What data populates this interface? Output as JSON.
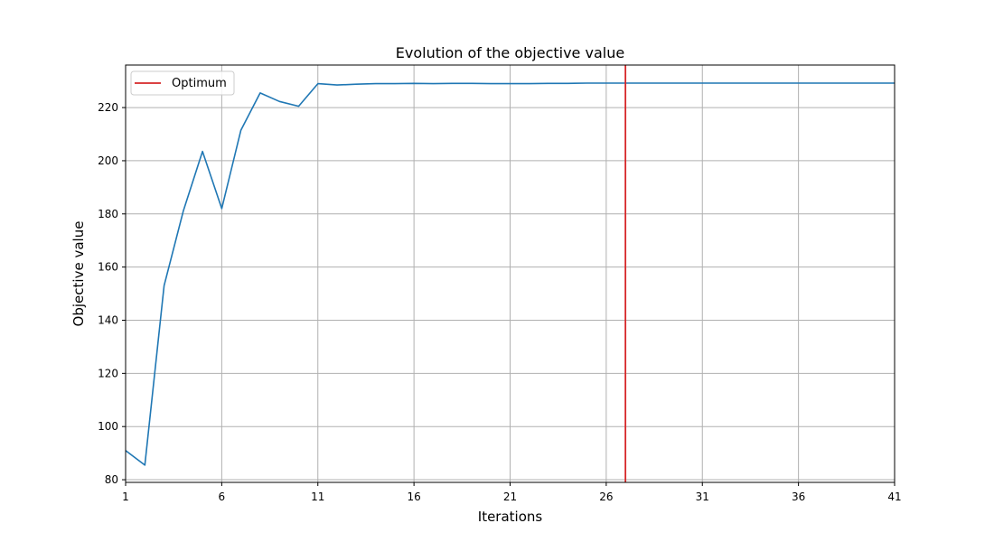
{
  "chart_data": {
    "type": "line",
    "title": "Evolution of the objective value",
    "xlabel": "Iterations",
    "ylabel": "Objective value",
    "xlim": [
      1,
      41
    ],
    "ylim": [
      79,
      236
    ],
    "xticks": [
      1,
      6,
      11,
      16,
      21,
      26,
      31,
      36,
      41
    ],
    "yticks": [
      80,
      100,
      120,
      140,
      160,
      180,
      200,
      220
    ],
    "grid": true,
    "legend_position": "top-left",
    "series": [
      {
        "color": "#1f77b4",
        "x": [
          1,
          2,
          3,
          4,
          5,
          6,
          7,
          8,
          9,
          10,
          11,
          12,
          13,
          14,
          15,
          16,
          17,
          18,
          19,
          20,
          21,
          22,
          23,
          24,
          25,
          26,
          27,
          28,
          29,
          30,
          31,
          32,
          33,
          34,
          35,
          36,
          37,
          38,
          39,
          40,
          41
        ],
        "y": [
          91,
          85.5,
          153,
          181,
          203.5,
          182,
          211.5,
          225.5,
          222.3,
          220.5,
          229,
          228.5,
          228.8,
          229,
          229,
          229.1,
          229,
          229.1,
          229.1,
          229,
          229,
          229,
          229.1,
          229.1,
          229.2,
          229.2,
          229.2,
          229.2,
          229.2,
          229.2,
          229.2,
          229.2,
          229.2,
          229.2,
          229.2,
          229.2,
          229.2,
          229.2,
          229.2,
          229.2,
          229.2
        ]
      }
    ],
    "vlines": [
      {
        "name": "Optimum",
        "x": 27,
        "color": "#d62728"
      }
    ]
  }
}
